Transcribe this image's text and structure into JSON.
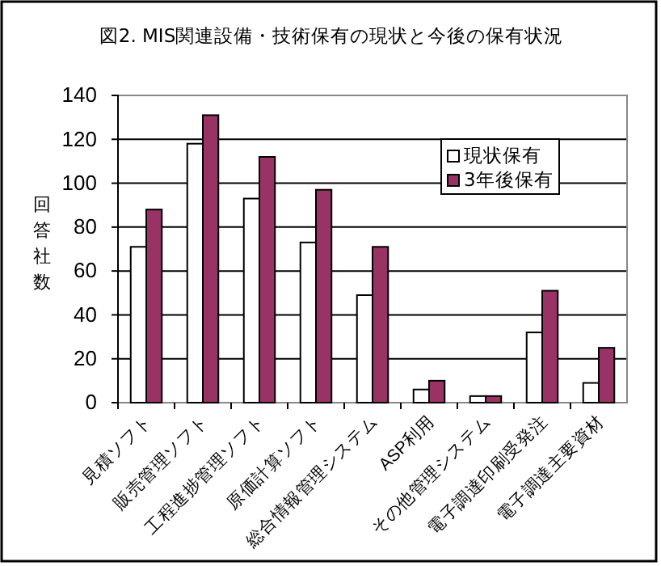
{
  "chart_data": {
    "type": "bar",
    "title": "図2. MIS関連設備・技術保有の現状と今後の保有状況",
    "ylabel": "回答社数",
    "categories": [
      "見積ソフト",
      "販売管理ソフト",
      "工程進捗管理ソフト",
      "原価計算ソフト",
      "総合情報管理システム",
      "ASP利用",
      "その他管理システム",
      "電子調達印刷受発注",
      "電子調達主要資材"
    ],
    "series": [
      {
        "name": "現状保有",
        "color": "#ffffff",
        "values": [
          71,
          118,
          93,
          73,
          49,
          6,
          3,
          32,
          9
        ]
      },
      {
        "name": "3年後保有",
        "color": "#993366",
        "values": [
          88,
          131,
          112,
          97,
          71,
          10,
          3,
          51,
          25
        ]
      }
    ],
    "ylim": [
      0,
      140
    ],
    "yticks": [
      0,
      20,
      40,
      60,
      80,
      100,
      120,
      140
    ],
    "grid": "y",
    "legend": "top right"
  }
}
